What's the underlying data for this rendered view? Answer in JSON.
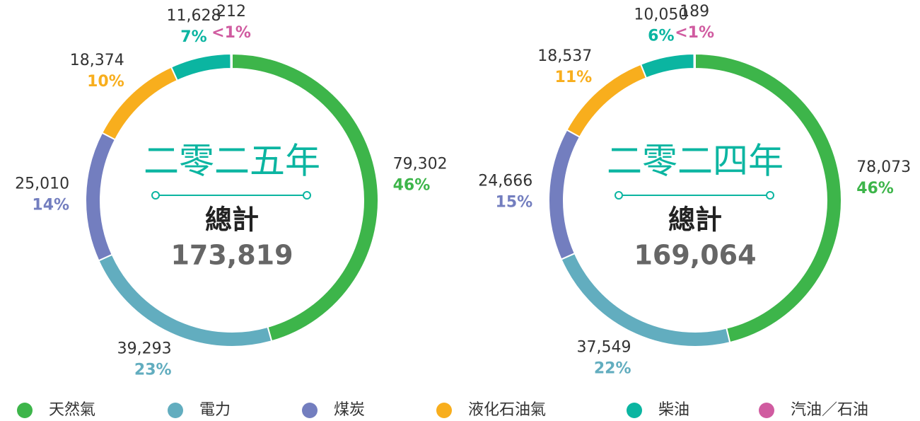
{
  "chart_data": [
    {
      "type": "donut",
      "title": "二零二五年",
      "total_caption": "總計",
      "total": {
        "value": 173819,
        "label": "173,819"
      },
      "values": [
        79302,
        39293,
        25010,
        18374,
        11628,
        212
      ],
      "value_labels": [
        "79,302",
        "39,293",
        "25,010",
        "18,374",
        "11,628",
        "212"
      ],
      "percent_labels": [
        "46%",
        "23%",
        "14%",
        "10%",
        "7%",
        "<1%"
      ]
    },
    {
      "type": "donut",
      "title": "二零二四年",
      "total_caption": "總計",
      "total": {
        "value": 169064,
        "label": "169,064"
      },
      "values": [
        78073,
        37549,
        24666,
        18537,
        10050,
        189
      ],
      "value_labels": [
        "78,073",
        "37,549",
        "24,666",
        "18,537",
        "10,050",
        "189"
      ],
      "percent_labels": [
        "46%",
        "22%",
        "15%",
        "11%",
        "6%",
        "<1%"
      ]
    }
  ],
  "legend": {
    "labels": [
      "天然氣",
      "電力",
      "煤炭",
      "液化石油氣",
      "柴油",
      "汽油／石油"
    ],
    "colors": [
      "#3db54a",
      "#62adbf",
      "#737ebf",
      "#f8ae1d",
      "#0bb5a1",
      "#d05ba0"
    ]
  }
}
